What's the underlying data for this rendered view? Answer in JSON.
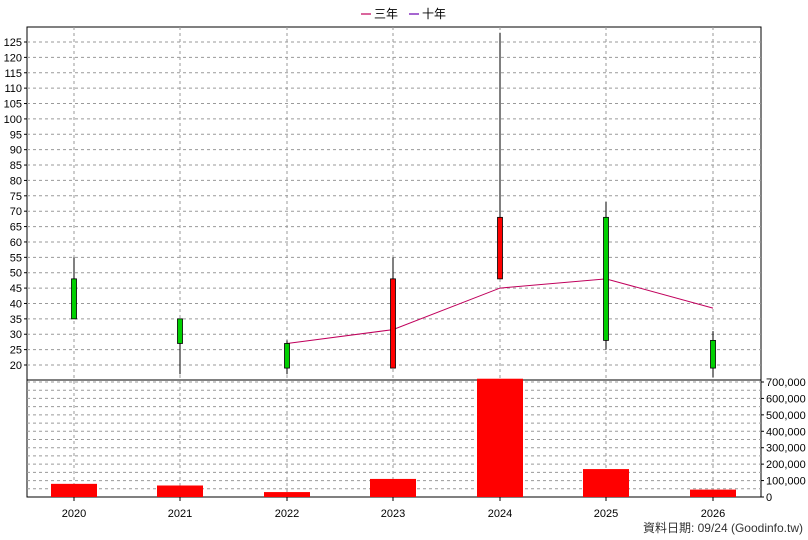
{
  "chart_data": [
    {
      "type": "candlestick",
      "categories": [
        "2020",
        "2021",
        "2022",
        "2023",
        "2024",
        "2025",
        "2026"
      ],
      "ohlc": [
        {
          "open": 35,
          "high": 55,
          "low": 35,
          "close": 48
        },
        {
          "open": 27,
          "high": 35,
          "low": 17,
          "close": 35
        },
        {
          "open": 19,
          "high": 28,
          "low": 17,
          "close": 27
        },
        {
          "open": 48,
          "high": 55,
          "low": 19,
          "close": 19
        },
        {
          "open": 68,
          "high": 128,
          "low": 48,
          "close": 48
        },
        {
          "open": 28,
          "high": 73,
          "low": 25,
          "close": 68
        },
        {
          "open": 19,
          "high": 31,
          "low": 16,
          "close": 28
        }
      ],
      "colors": {
        "up": "#00d000",
        "down": "#ff0000",
        "wick": "#000000"
      },
      "series": [
        {
          "name": "三年",
          "color": "#c0005c",
          "values": [
            null,
            null,
            27,
            31.5,
            45,
            48,
            38.5
          ]
        },
        {
          "name": "十年",
          "color": "#6a00b0",
          "values": [
            null,
            null,
            null,
            null,
            null,
            null,
            null
          ]
        }
      ],
      "yticks": [
        "20",
        "25",
        "30",
        "35",
        "40",
        "45",
        "50",
        "55",
        "60",
        "65",
        "70",
        "75",
        "80",
        "85",
        "90",
        "95",
        "100",
        "105",
        "110",
        "115",
        "120",
        "125"
      ],
      "ylim": [
        15,
        128
      ],
      "grid": true,
      "legend_position": "top-center"
    },
    {
      "type": "bar",
      "categories": [
        "2020",
        "2021",
        "2022",
        "2023",
        "2024",
        "2025",
        "2026"
      ],
      "values": [
        80000,
        70000,
        30000,
        110000,
        720000,
        170000,
        45000
      ],
      "color": "#ff0000",
      "yticks": [
        "0",
        "100,000",
        "200,000",
        "300,000",
        "400,000",
        "500,000",
        "600,000",
        "700,000"
      ],
      "ylim": [
        0,
        720000
      ],
      "grid": true
    }
  ],
  "footer": "資料日期: 09/24  (Goodinfo.tw)"
}
